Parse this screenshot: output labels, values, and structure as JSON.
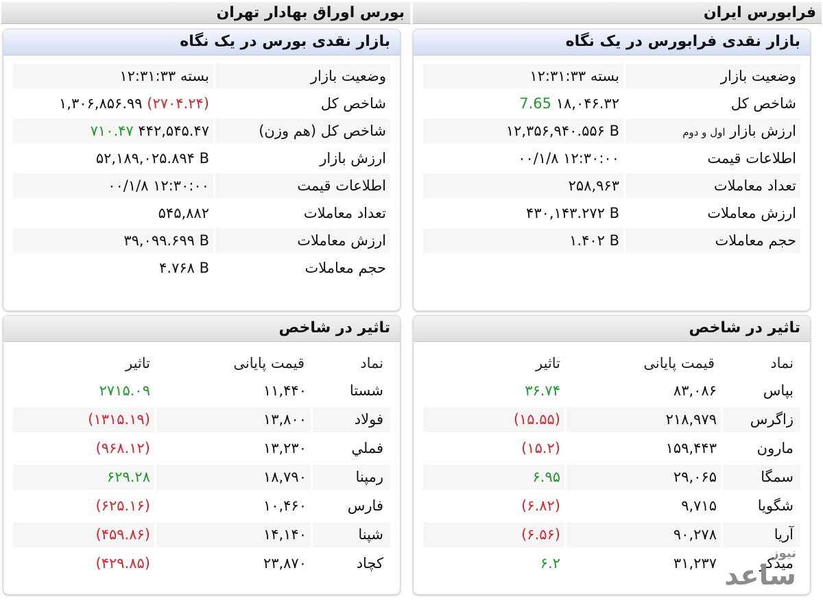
{
  "headers": {
    "farabourse_title": "فرابورس ایران",
    "bourse_title": "بورس اوراق بهادار تهران"
  },
  "farabourse_glance": {
    "title": "بازار نقدی فرابورس در یک نگاه",
    "rows": [
      {
        "label": "وضعیت بازار",
        "value": "بسته ۱۲:۳۱:۳۳"
      },
      {
        "label": "شاخص کل",
        "value": "۱۸,۰۴۶.۳۲",
        "change": "7.65"
      },
      {
        "label": "ارزش بازار",
        "label_suffix": "اول و دوم",
        "value": "۱۲,۳۵۶,۹۴۰.۵۵۶ B"
      },
      {
        "label": "اطلاعات قیمت",
        "value": "۰۰/۱/۸ ۱۲:۳۰:۰۰"
      },
      {
        "label": "تعداد معاملات",
        "value": "۲۵۸,۹۶۳"
      },
      {
        "label": "ارزش معاملات",
        "value": "۴۳۰,۱۴۳.۲۷۲ B"
      },
      {
        "label": "حجم معاملات",
        "value": "۱.۴۰۲ B"
      }
    ]
  },
  "bourse_glance": {
    "title": "بازار نقدی بورس در یک نگاه",
    "rows": [
      {
        "label": "وضعیت بازار",
        "value": "بسته ۱۲:۳۱:۳۳"
      },
      {
        "label": "شاخص کل",
        "value": "۱,۳۰۶,۸۵۶.۹۹",
        "change": "(۲۷۰۴.۲۴)"
      },
      {
        "label": "شاخص کل (هم وزن)",
        "value": "۴۴۲,۵۴۵.۴۷",
        "change": "۷۱۰.۴۷"
      },
      {
        "label": "ارزش بازار",
        "value": "۵۲,۱۸۹,۰۲۵.۸۹۴ B"
      },
      {
        "label": "اطلاعات قیمت",
        "value": "۰۰/۱/۸ ۱۲:۳۰:۰۰"
      },
      {
        "label": "تعداد معاملات",
        "value": "۵۴۵,۸۸۲"
      },
      {
        "label": "ارزش معاملات",
        "value": "۳۹,۰۹۹.۶۹۹ B"
      },
      {
        "label": "حجم معاملات",
        "value": "۴.۷۶۸ B"
      }
    ]
  },
  "farabourse_impact": {
    "title": "تاثیر در شاخص",
    "columns": {
      "symbol": "نماد",
      "price": "قیمت پایانی",
      "effect": "تاثیر"
    },
    "rows": [
      {
        "symbol": "بپاس",
        "price": "۸۳,۰۸۶",
        "effect": "۳۶.۷۴",
        "positive": true
      },
      {
        "symbol": "زاگرس",
        "price": "۲۱۸,۹۷۹",
        "effect": "(۱۵.۵۵)",
        "positive": false
      },
      {
        "symbol": "مارون",
        "price": "۱۵۹,۴۴۳",
        "effect": "(۱۵.۲)",
        "positive": false
      },
      {
        "symbol": "سمگا",
        "price": "۲۹,۰۶۵",
        "effect": "۶.۹۵",
        "positive": true
      },
      {
        "symbol": "شگویا",
        "price": "۹,۷۱۵",
        "effect": "(۶.۸۲)",
        "positive": false
      },
      {
        "symbol": "آریا",
        "price": "۹۰,۲۷۸",
        "effect": "(۶.۵۶)",
        "positive": false
      },
      {
        "symbol": "میدکو",
        "price": "۳۱,۲۳۷",
        "effect": "۶.۲",
        "positive": true
      }
    ]
  },
  "bourse_impact": {
    "title": "تاثیر در شاخص",
    "columns": {
      "symbol": "نماد",
      "price": "قیمت پایانی",
      "effect": "تاثیر"
    },
    "rows": [
      {
        "symbol": "شستا",
        "price": "۱۱,۴۴۰",
        "effect": "۲۷۱۵.۰۹",
        "positive": true
      },
      {
        "symbol": "فولاد",
        "price": "۱۳,۸۰۰",
        "effect": "(۱۳۱۵.۱۹)",
        "positive": false
      },
      {
        "symbol": "فملي",
        "price": "۱۳,۲۳۰",
        "effect": "(۹۶۸.۱۲)",
        "positive": false
      },
      {
        "symbol": "رمپنا",
        "price": "۱۸,۷۹۰",
        "effect": "۶۲۹.۲۸",
        "positive": true
      },
      {
        "symbol": "فارس",
        "price": "۱۰,۴۶۰",
        "effect": "(۶۲۵.۱۶)",
        "positive": false
      },
      {
        "symbol": "شپنا",
        "price": "۱۴,۱۴۰",
        "effect": "(۴۵۹.۸۶)",
        "positive": false
      },
      {
        "symbol": "کچاد",
        "price": "۲۳,۸۷۰",
        "effect": "(۴۲۹.۸۵)",
        "positive": false
      }
    ]
  },
  "watermark": {
    "text": "ساعد نیوز"
  },
  "colors": {
    "positive": "#1e9a2a",
    "negative": "#e0202a",
    "header_blue": "#d2dcf2"
  }
}
